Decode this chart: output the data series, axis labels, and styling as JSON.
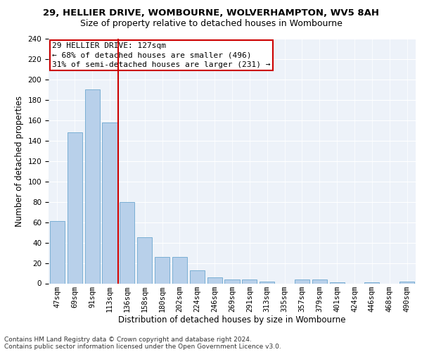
{
  "title_line1": "29, HELLIER DRIVE, WOMBOURNE, WOLVERHAMPTON, WV5 8AH",
  "title_line2": "Size of property relative to detached houses in Wombourne",
  "xlabel": "Distribution of detached houses by size in Wombourne",
  "ylabel": "Number of detached properties",
  "categories": [
    "47sqm",
    "69sqm",
    "91sqm",
    "113sqm",
    "136sqm",
    "158sqm",
    "180sqm",
    "202sqm",
    "224sqm",
    "246sqm",
    "269sqm",
    "291sqm",
    "313sqm",
    "335sqm",
    "357sqm",
    "379sqm",
    "401sqm",
    "424sqm",
    "446sqm",
    "468sqm",
    "490sqm"
  ],
  "values": [
    61,
    148,
    190,
    158,
    80,
    45,
    26,
    26,
    13,
    6,
    4,
    4,
    2,
    0,
    4,
    4,
    1,
    0,
    1,
    0,
    2
  ],
  "bar_color": "#b8d0ea",
  "bar_edge_color": "#7aafd4",
  "annotation_line1": "29 HELLIER DRIVE: 127sqm",
  "annotation_line2": "← 68% of detached houses are smaller (496)",
  "annotation_line3": "31% of semi-detached houses are larger (231) →",
  "annotation_box_color": "#ffffff",
  "annotation_box_edge": "#cc0000",
  "vline_color": "#cc0000",
  "vline_x_pos": 3.5,
  "ylim": [
    0,
    240
  ],
  "yticks": [
    0,
    20,
    40,
    60,
    80,
    100,
    120,
    140,
    160,
    180,
    200,
    220,
    240
  ],
  "background_color": "#edf2f9",
  "footer_line1": "Contains HM Land Registry data © Crown copyright and database right 2024.",
  "footer_line2": "Contains public sector information licensed under the Open Government Licence v3.0.",
  "title_fontsize": 9.5,
  "subtitle_fontsize": 9,
  "axis_label_fontsize": 8.5,
  "tick_fontsize": 7.5,
  "annotation_fontsize": 8,
  "footer_fontsize": 6.5
}
